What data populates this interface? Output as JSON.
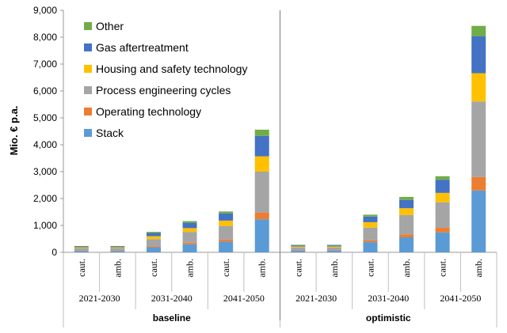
{
  "chart_data": {
    "type": "bar",
    "stacked": true,
    "ylabel": "Mio. € p.a.",
    "ylim": [
      0,
      9000
    ],
    "yticks": [
      "0",
      "1,000",
      "2,000",
      "3,000",
      "4,000",
      "5,000",
      "6,000",
      "7,000",
      "8,000",
      "9,000"
    ],
    "ytick_values": [
      0,
      1000,
      2000,
      3000,
      4000,
      5000,
      6000,
      7000,
      8000,
      9000
    ],
    "grid": false,
    "legend_position": "top-left",
    "series": [
      {
        "name": "Stack",
        "color": "#5b9bd5",
        "values": [
          55,
          55,
          190,
          300,
          400,
          1230,
          60,
          60,
          380,
          560,
          740,
          2300
        ]
      },
      {
        "name": "Operating technology",
        "color": "#ed7d31",
        "values": [
          15,
          15,
          40,
          60,
          80,
          250,
          15,
          15,
          70,
          110,
          170,
          500
        ]
      },
      {
        "name": "Process engineering cycles",
        "color": "#a5a5a5",
        "values": [
          90,
          90,
          260,
          400,
          500,
          1520,
          110,
          110,
          470,
          720,
          950,
          2810
        ]
      },
      {
        "name": "Housing and safety technology",
        "color": "#ffc000",
        "values": [
          30,
          30,
          110,
          140,
          200,
          570,
          35,
          35,
          200,
          250,
          350,
          1050
        ]
      },
      {
        "name": "Gas aftertreatment",
        "color": "#4472c4",
        "values": [
          30,
          30,
          120,
          200,
          270,
          760,
          40,
          40,
          210,
          310,
          490,
          1380
        ]
      },
      {
        "name": "Other",
        "color": "#70ad47",
        "values": [
          15,
          15,
          40,
          60,
          70,
          230,
          20,
          20,
          70,
          110,
          130,
          380
        ]
      }
    ],
    "categories": [
      "caut.",
      "amb.",
      "caut.",
      "amb.",
      "caut.",
      "amb.",
      "caut.",
      "amb.",
      "caut.",
      "amb.",
      "caut.",
      "amb."
    ],
    "periods": [
      "2021-2030",
      "2031-2040",
      "2041-2050",
      "2021-2030",
      "2031-2040",
      "2041-2050"
    ],
    "scenarios": [
      "baseline",
      "optimistic"
    ]
  }
}
